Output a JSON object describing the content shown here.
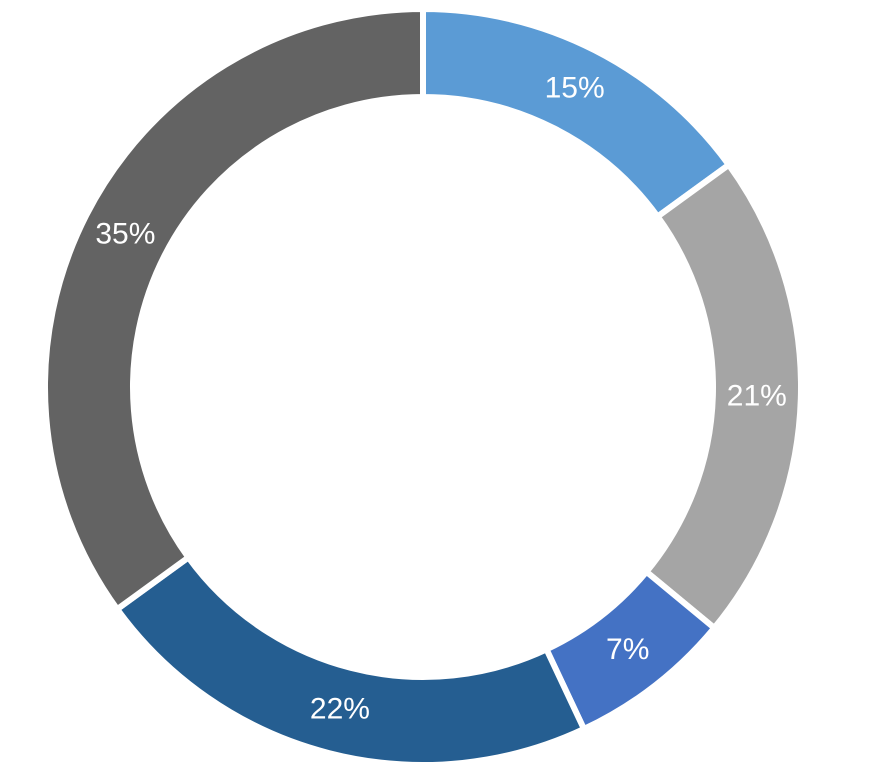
{
  "chart_data": {
    "type": "donut",
    "values": [
      15,
      21,
      7,
      22,
      35
    ],
    "value_labels": [
      "15%",
      "21%",
      "7%",
      "22%",
      "35%"
    ],
    "colors": [
      "#5b9bd5",
      "#a5a5a5",
      "#4472c4",
      "#255e91",
      "#636363"
    ]
  }
}
